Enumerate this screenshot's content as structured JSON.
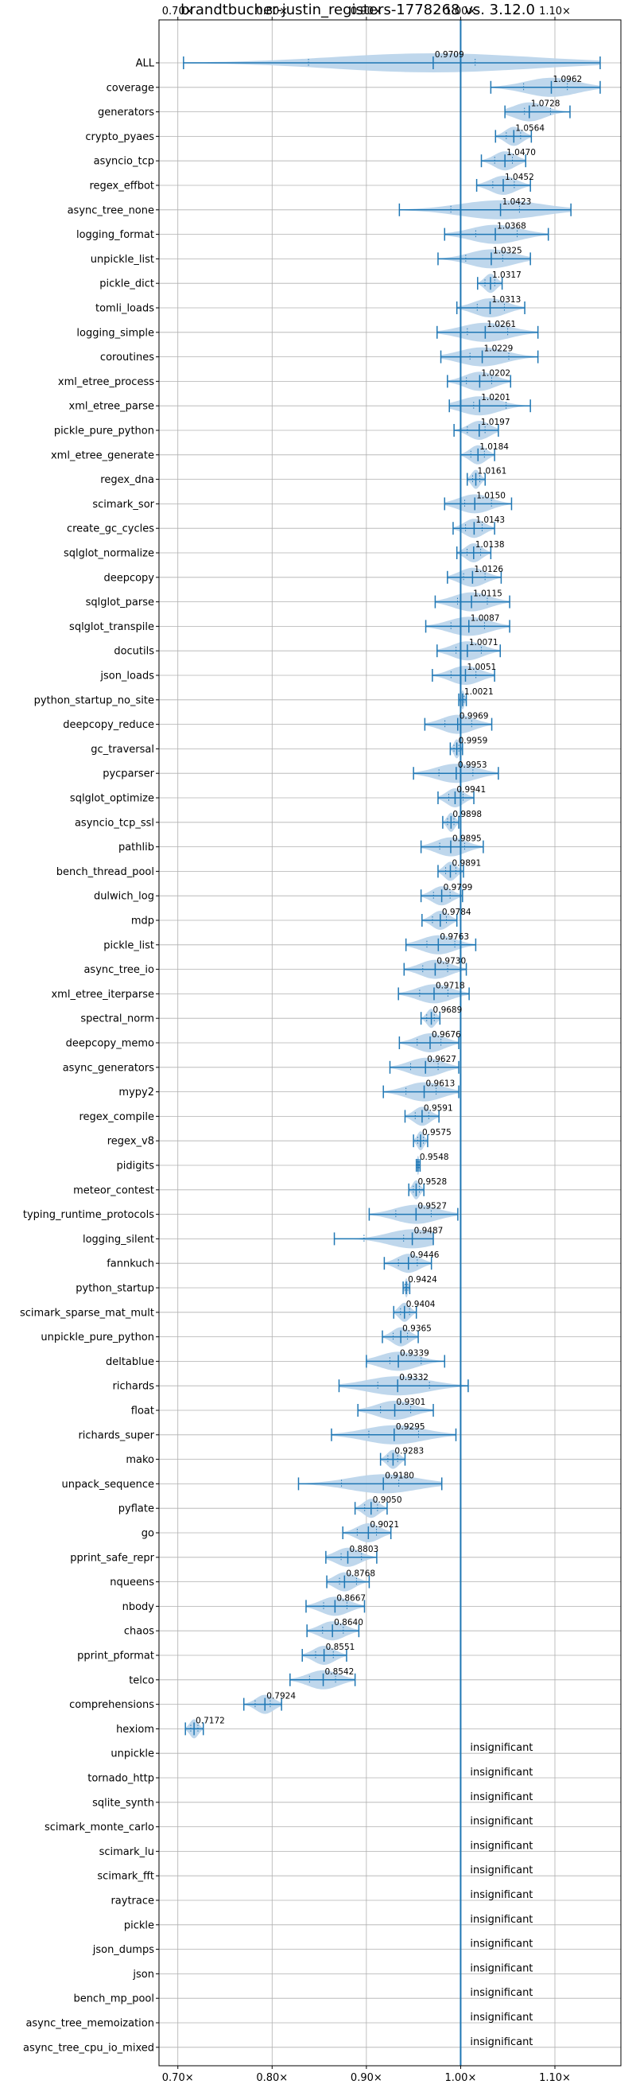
{
  "chart_data": {
    "type": "violin",
    "title": "brandtbucher-justin_registers-1778268 vs. 3.12.0",
    "xlim": [
      0.68,
      1.17
    ],
    "x_ticks": [
      0.7,
      0.8,
      0.9,
      1.0,
      1.1
    ],
    "x_tick_labels": [
      "0.70×",
      "0.80×",
      "0.90×",
      "1.00×",
      "1.10×"
    ],
    "reference_line": 1.0,
    "grid": "on",
    "colors": {
      "violin": "#b8d3ea",
      "errorbar": "#1f77b4",
      "reference": "#1f77b4",
      "grid": "#b0b0b0"
    },
    "insignificant_text": "insignificant",
    "benchmarks": [
      {
        "name": "ALL",
        "mean": 0.9709,
        "label": "0.9709",
        "min": 0.706,
        "max": 1.148
      },
      {
        "name": "coverage",
        "mean": 1.0962,
        "label": "1.0962",
        "min": 1.032,
        "max": 1.148
      },
      {
        "name": "generators",
        "mean": 1.0728,
        "label": "1.0728",
        "min": 1.047,
        "max": 1.116
      },
      {
        "name": "crypto_pyaes",
        "mean": 1.0564,
        "label": "1.0564",
        "min": 1.037,
        "max": 1.075
      },
      {
        "name": "asyncio_tcp",
        "mean": 1.047,
        "label": "1.0470",
        "min": 1.022,
        "max": 1.069
      },
      {
        "name": "regex_effbot",
        "mean": 1.0452,
        "label": "1.0452",
        "min": 1.017,
        "max": 1.074
      },
      {
        "name": "async_tree_none",
        "mean": 1.0423,
        "label": "1.0423",
        "min": 0.935,
        "max": 1.117
      },
      {
        "name": "logging_format",
        "mean": 1.0368,
        "label": "1.0368",
        "min": 0.983,
        "max": 1.093
      },
      {
        "name": "unpickle_list",
        "mean": 1.0325,
        "label": "1.0325",
        "min": 0.976,
        "max": 1.074
      },
      {
        "name": "pickle_dict",
        "mean": 1.0317,
        "label": "1.0317",
        "min": 1.018,
        "max": 1.044
      },
      {
        "name": "tomli_loads",
        "mean": 1.0313,
        "label": "1.0313",
        "min": 0.996,
        "max": 1.068
      },
      {
        "name": "logging_simple",
        "mean": 1.0261,
        "label": "1.0261",
        "min": 0.975,
        "max": 1.082
      },
      {
        "name": "coroutines",
        "mean": 1.0229,
        "label": "1.0229",
        "min": 0.979,
        "max": 1.082
      },
      {
        "name": "xml_etree_process",
        "mean": 1.0202,
        "label": "1.0202",
        "min": 0.986,
        "max": 1.053
      },
      {
        "name": "xml_etree_parse",
        "mean": 1.0201,
        "label": "1.0201",
        "min": 0.988,
        "max": 1.074
      },
      {
        "name": "pickle_pure_python",
        "mean": 1.0197,
        "label": "1.0197",
        "min": 0.993,
        "max": 1.04
      },
      {
        "name": "xml_etree_generate",
        "mean": 1.0184,
        "label": "1.0184",
        "min": 1.0,
        "max": 1.036
      },
      {
        "name": "regex_dna",
        "mean": 1.0161,
        "label": "1.0161",
        "min": 1.007,
        "max": 1.026
      },
      {
        "name": "scimark_sor",
        "mean": 1.015,
        "label": "1.0150",
        "min": 0.983,
        "max": 1.054
      },
      {
        "name": "create_gc_cycles",
        "mean": 1.0143,
        "label": "1.0143",
        "min": 0.992,
        "max": 1.036
      },
      {
        "name": "sqlglot_normalize",
        "mean": 1.0138,
        "label": "1.0138",
        "min": 0.996,
        "max": 1.032
      },
      {
        "name": "deepcopy",
        "mean": 1.0126,
        "label": "1.0126",
        "min": 0.986,
        "max": 1.043
      },
      {
        "name": "sqlglot_parse",
        "mean": 1.0115,
        "label": "1.0115",
        "min": 0.973,
        "max": 1.052
      },
      {
        "name": "sqlglot_transpile",
        "mean": 1.0087,
        "label": "1.0087",
        "min": 0.963,
        "max": 1.052
      },
      {
        "name": "docutils",
        "mean": 1.0071,
        "label": "1.0071",
        "min": 0.975,
        "max": 1.042
      },
      {
        "name": "json_loads",
        "mean": 1.0051,
        "label": "1.0051",
        "min": 0.97,
        "max": 1.036
      },
      {
        "name": "python_startup_no_site",
        "mean": 1.0021,
        "label": "1.0021",
        "min": 0.998,
        "max": 1.006
      },
      {
        "name": "deepcopy_reduce",
        "mean": 0.9969,
        "label": "0.9969",
        "min": 0.962,
        "max": 1.033
      },
      {
        "name": "gc_traversal",
        "mean": 0.9959,
        "label": "0.9959",
        "min": 0.989,
        "max": 1.002
      },
      {
        "name": "pycparser",
        "mean": 0.9953,
        "label": "0.9953",
        "min": 0.95,
        "max": 1.04
      },
      {
        "name": "sqlglot_optimize",
        "mean": 0.9941,
        "label": "0.9941",
        "min": 0.976,
        "max": 1.014
      },
      {
        "name": "asyncio_tcp_ssl",
        "mean": 0.9898,
        "label": "0.9898",
        "min": 0.981,
        "max": 0.998
      },
      {
        "name": "pathlib",
        "mean": 0.9895,
        "label": "0.9895",
        "min": 0.958,
        "max": 1.024
      },
      {
        "name": "bench_thread_pool",
        "mean": 0.9891,
        "label": "0.9891",
        "min": 0.976,
        "max": 1.003
      },
      {
        "name": "dulwich_log",
        "mean": 0.9799,
        "label": "0.9799",
        "min": 0.958,
        "max": 1.002
      },
      {
        "name": "mdp",
        "mean": 0.9784,
        "label": "0.9784",
        "min": 0.959,
        "max": 0.996
      },
      {
        "name": "pickle_list",
        "mean": 0.9763,
        "label": "0.9763",
        "min": 0.942,
        "max": 1.016
      },
      {
        "name": "async_tree_io",
        "mean": 0.973,
        "label": "0.9730",
        "min": 0.94,
        "max": 1.006
      },
      {
        "name": "xml_etree_iterparse",
        "mean": 0.9718,
        "label": "0.9718",
        "min": 0.934,
        "max": 1.009
      },
      {
        "name": "spectral_norm",
        "mean": 0.9689,
        "label": "0.9689",
        "min": 0.958,
        "max": 0.978
      },
      {
        "name": "deepcopy_memo",
        "mean": 0.9676,
        "label": "0.9676",
        "min": 0.935,
        "max": 0.998
      },
      {
        "name": "async_generators",
        "mean": 0.9627,
        "label": "0.9627",
        "min": 0.925,
        "max": 0.998
      },
      {
        "name": "mypy2",
        "mean": 0.9613,
        "label": "0.9613",
        "min": 0.918,
        "max": 0.998
      },
      {
        "name": "regex_compile",
        "mean": 0.9591,
        "label": "0.9591",
        "min": 0.941,
        "max": 0.977
      },
      {
        "name": "regex_v8",
        "mean": 0.9575,
        "label": "0.9575",
        "min": 0.95,
        "max": 0.965
      },
      {
        "name": "pidigits",
        "mean": 0.9548,
        "label": "0.9548",
        "min": 0.953,
        "max": 0.957
      },
      {
        "name": "meteor_contest",
        "mean": 0.9528,
        "label": "0.9528",
        "min": 0.945,
        "max": 0.961
      },
      {
        "name": "typing_runtime_protocols",
        "mean": 0.9527,
        "label": "0.9527",
        "min": 0.903,
        "max": 0.997
      },
      {
        "name": "logging_silent",
        "mean": 0.9487,
        "label": "0.9487",
        "min": 0.866,
        "max": 0.971
      },
      {
        "name": "fannkuch",
        "mean": 0.9446,
        "label": "0.9446",
        "min": 0.919,
        "max": 0.969
      },
      {
        "name": "python_startup",
        "mean": 0.9424,
        "label": "0.9424",
        "min": 0.939,
        "max": 0.946
      },
      {
        "name": "scimark_sparse_mat_mult",
        "mean": 0.9404,
        "label": "0.9404",
        "min": 0.929,
        "max": 0.953
      },
      {
        "name": "unpickle_pure_python",
        "mean": 0.9365,
        "label": "0.9365",
        "min": 0.917,
        "max": 0.955
      },
      {
        "name": "deltablue",
        "mean": 0.9339,
        "label": "0.9339",
        "min": 0.9,
        "max": 0.983
      },
      {
        "name": "richards",
        "mean": 0.9332,
        "label": "0.9332",
        "min": 0.871,
        "max": 1.008
      },
      {
        "name": "float",
        "mean": 0.9301,
        "label": "0.9301",
        "min": 0.891,
        "max": 0.971
      },
      {
        "name": "richards_super",
        "mean": 0.9295,
        "label": "0.9295",
        "min": 0.863,
        "max": 0.995
      },
      {
        "name": "mako",
        "mean": 0.9283,
        "label": "0.9283",
        "min": 0.915,
        "max": 0.941
      },
      {
        "name": "unpack_sequence",
        "mean": 0.918,
        "label": "0.9180",
        "min": 0.828,
        "max": 0.98
      },
      {
        "name": "pyflate",
        "mean": 0.905,
        "label": "0.9050",
        "min": 0.888,
        "max": 0.922
      },
      {
        "name": "go",
        "mean": 0.9021,
        "label": "0.9021",
        "min": 0.875,
        "max": 0.926
      },
      {
        "name": "pprint_safe_repr",
        "mean": 0.8803,
        "label": "0.8803",
        "min": 0.857,
        "max": 0.911
      },
      {
        "name": "nqueens",
        "mean": 0.8768,
        "label": "0.8768",
        "min": 0.858,
        "max": 0.903
      },
      {
        "name": "nbody",
        "mean": 0.8667,
        "label": "0.8667",
        "min": 0.836,
        "max": 0.898
      },
      {
        "name": "chaos",
        "mean": 0.864,
        "label": "0.8640",
        "min": 0.837,
        "max": 0.892
      },
      {
        "name": "pprint_pformat",
        "mean": 0.8551,
        "label": "0.8551",
        "min": 0.832,
        "max": 0.879
      },
      {
        "name": "telco",
        "mean": 0.8542,
        "label": "0.8542",
        "min": 0.819,
        "max": 0.888
      },
      {
        "name": "comprehensions",
        "mean": 0.7924,
        "label": "0.7924",
        "min": 0.77,
        "max": 0.81
      },
      {
        "name": "hexiom",
        "mean": 0.7172,
        "label": "0.7172",
        "min": 0.708,
        "max": 0.727
      },
      {
        "name": "unpickle",
        "insignificant": true
      },
      {
        "name": "tornado_http",
        "insignificant": true
      },
      {
        "name": "sqlite_synth",
        "insignificant": true
      },
      {
        "name": "scimark_monte_carlo",
        "insignificant": true
      },
      {
        "name": "scimark_lu",
        "insignificant": true
      },
      {
        "name": "scimark_fft",
        "insignificant": true
      },
      {
        "name": "raytrace",
        "insignificant": true
      },
      {
        "name": "pickle",
        "insignificant": true
      },
      {
        "name": "json_dumps",
        "insignificant": true
      },
      {
        "name": "json",
        "insignificant": true
      },
      {
        "name": "bench_mp_pool",
        "insignificant": true
      },
      {
        "name": "async_tree_memoization",
        "insignificant": true
      },
      {
        "name": "async_tree_cpu_io_mixed",
        "insignificant": true
      }
    ]
  }
}
